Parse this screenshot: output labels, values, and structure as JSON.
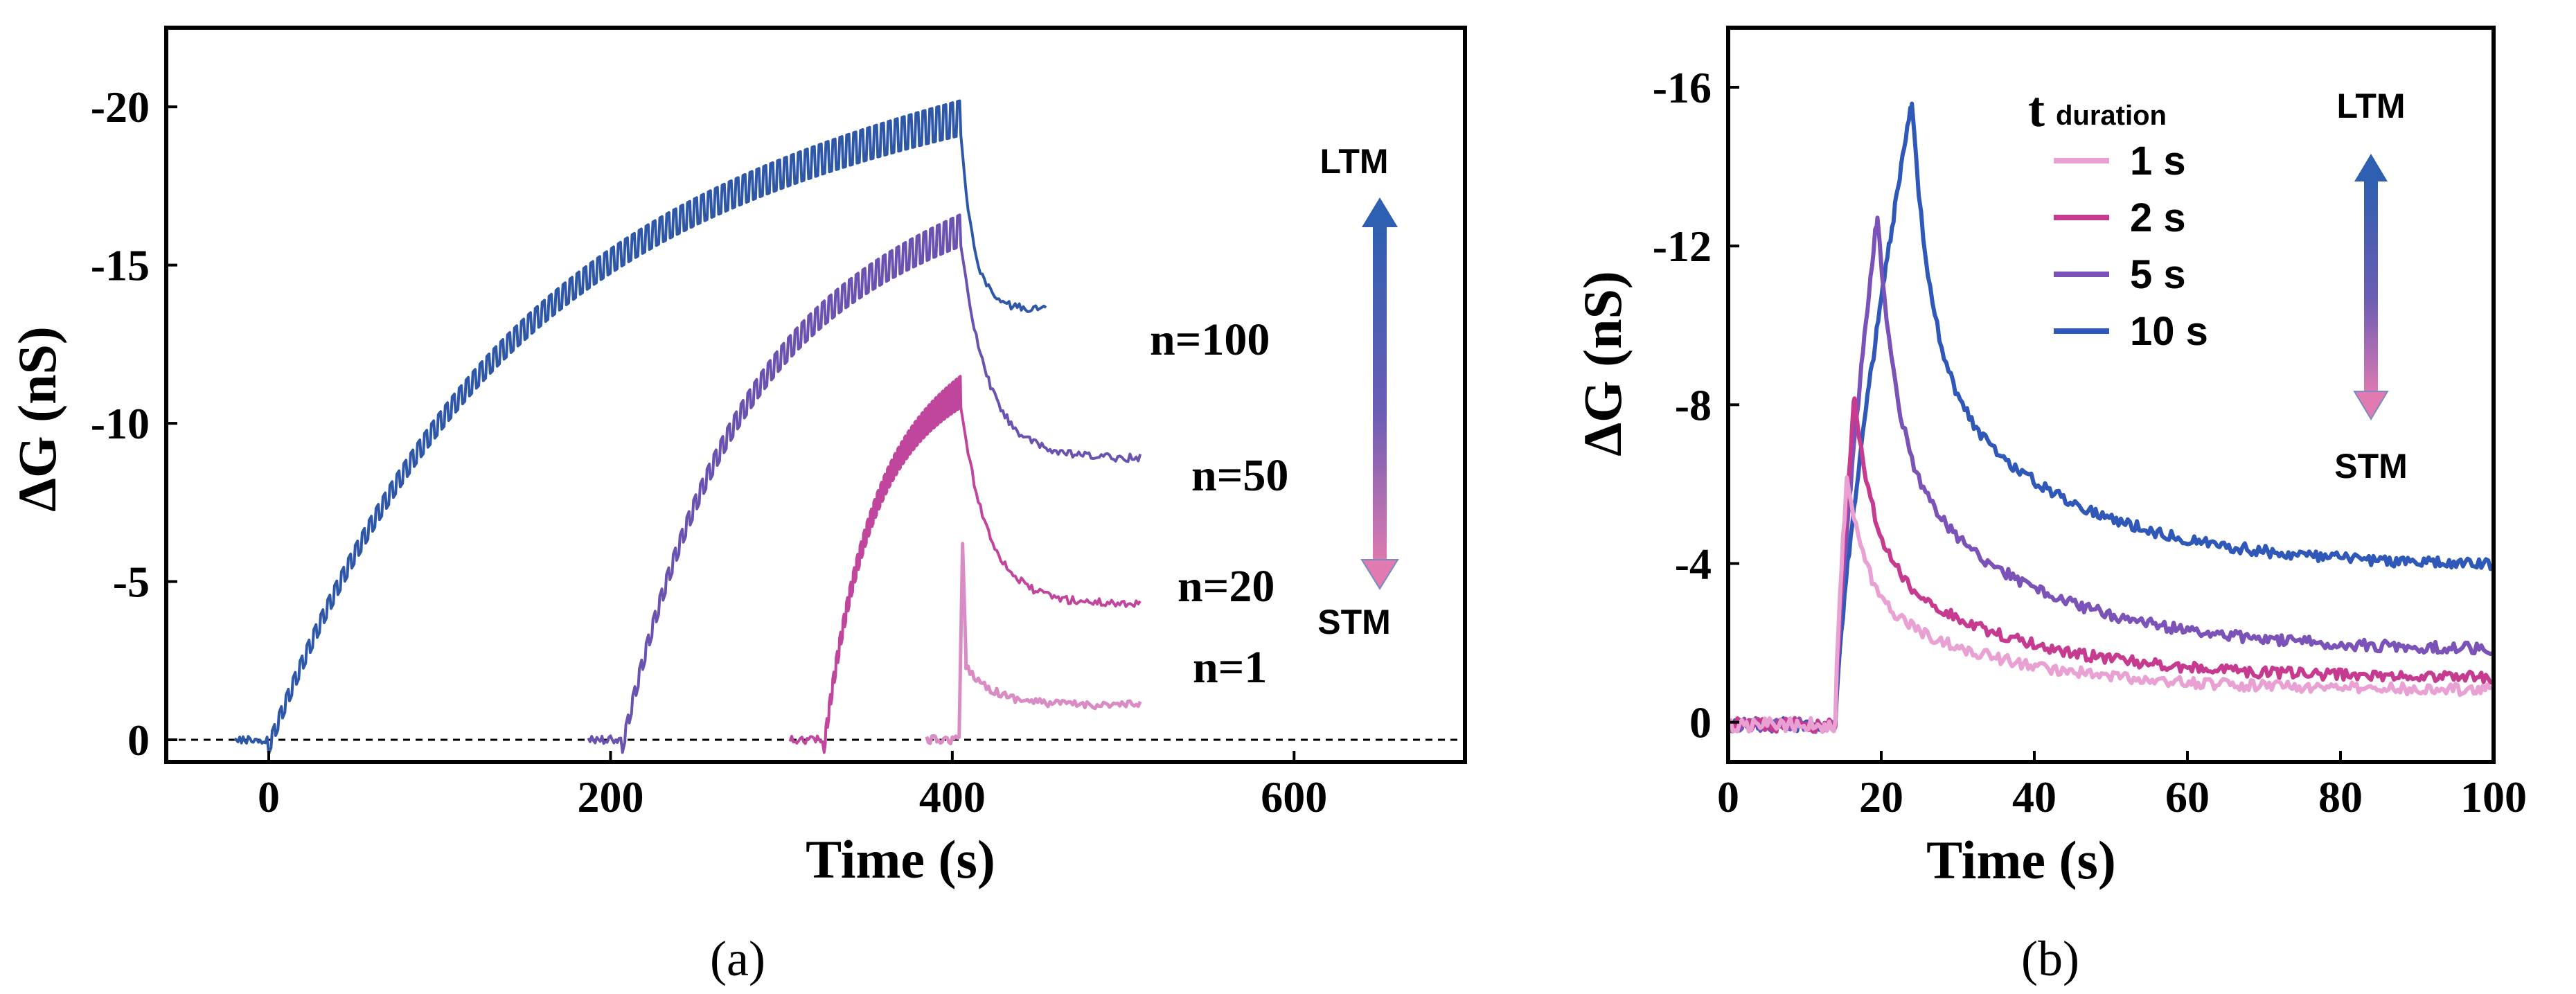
{
  "chart_data": [
    {
      "type": "line",
      "panel_label": "(a)",
      "xlabel": "Time (s)",
      "ylabel": "ΔG (nS)",
      "xlim": [
        -60,
        700
      ],
      "ylim": [
        0.7,
        -22.5
      ],
      "xticks": [
        0,
        200,
        400,
        600
      ],
      "yticks": [
        0,
        -5,
        -10,
        -15,
        -20
      ],
      "xtick_labels": [
        "0",
        "200",
        "400",
        "600"
      ],
      "ytick_labels": [
        "0",
        "-5",
        "-10",
        "-15",
        "-20"
      ],
      "baseline": 0,
      "arrow_top_label": "LTM",
      "arrow_bottom_label": "STM",
      "series": [
        {
          "name": "n=100",
          "color": "#2f57a8",
          "start": 0,
          "pulses": 100,
          "peak": -20.2,
          "end_time": 455,
          "end": -13.6,
          "osc": 1.1
        },
        {
          "name": "n=50",
          "color": "#6b52b0",
          "start": 207,
          "pulses": 50,
          "peak": -16.6,
          "end_time": 510,
          "end": -8.9,
          "osc": 1.0
        },
        {
          "name": "n=20",
          "color": "#c0459d",
          "start": 325,
          "pulses": 20,
          "peak": -11.5,
          "end_time": 510,
          "end": -4.3,
          "osc": 1.0
        },
        {
          "name": "n=1",
          "color": "#d98cc4",
          "start": 405,
          "pulses": 1,
          "peak": -6.2,
          "end_time": 510,
          "end": -1.1,
          "osc": 0
        }
      ],
      "series_labels": [
        "n=100",
        "n=50",
        "n=20",
        "n=1"
      ]
    },
    {
      "type": "line",
      "panel_label": "(b)",
      "xlabel": "Time (s)",
      "ylabel": "ΔG (nS)",
      "xlim": [
        0,
        100
      ],
      "ylim": [
        1.0,
        -17.5
      ],
      "xticks": [
        0,
        20,
        40,
        60,
        80,
        100
      ],
      "yticks": [
        0,
        -4,
        -8,
        -12,
        -16
      ],
      "xtick_labels": [
        "0",
        "20",
        "40",
        "60",
        "80",
        "100"
      ],
      "ytick_labels": [
        "0",
        "-4",
        "-8",
        "-12",
        "-16"
      ],
      "legend_title": "t",
      "legend_title_sub": "duration",
      "arrow_top_label": "LTM",
      "arrow_bottom_label": "STM",
      "series": [
        {
          "name": "1 s",
          "color": "#e9a0d2",
          "rise": 14,
          "peak_time": 15.5,
          "peak": -6.2,
          "tail": -0.8
        },
        {
          "name": "2 s",
          "color": "#c63a8f",
          "rise": 14,
          "peak_time": 16.5,
          "peak": -8.2,
          "tail": -1.1
        },
        {
          "name": "5 s",
          "color": "#7a52b8",
          "rise": 14,
          "peak_time": 19.5,
          "peak": -12.8,
          "tail": -1.8
        },
        {
          "name": "10 s",
          "color": "#2f58b8",
          "rise": 14,
          "peak_time": 24,
          "peak": -15.6,
          "tail": -3.9
        }
      ]
    }
  ]
}
